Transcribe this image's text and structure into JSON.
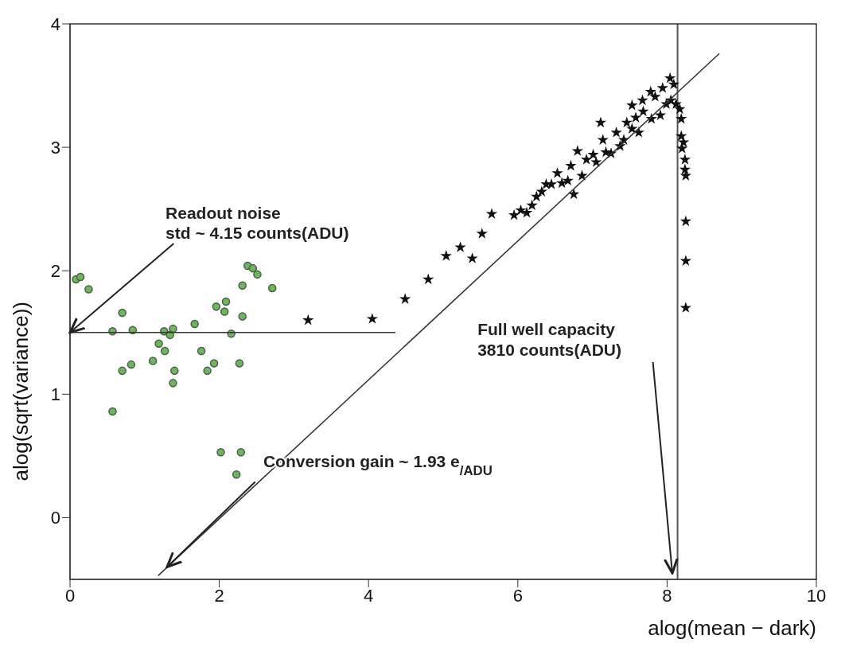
{
  "chart_data": {
    "type": "scatter",
    "xlabel": "alog(mean − dark)",
    "ylabel": "alog(sqrt(variance))",
    "xlim": [
      0,
      10
    ],
    "xticks": [
      0,
      2,
      4,
      6,
      8,
      10
    ],
    "ylim": [
      -0.5,
      4
    ],
    "yticks": [
      0,
      1,
      2,
      3,
      4
    ],
    "grid": false,
    "annotations": [
      {
        "text": "Readout noise",
        "x": 0,
        "y": 1.5
      },
      "std ~ 4.15 counts(ADU)",
      "Full well capacity",
      "3810 counts(ADU)",
      {
        "text": "Conversion gain ~ 1.93 e$_{/ADU}$",
        "x": 1.3,
        "y": -0.4
      }
    ],
    "ref_lines": [
      {
        "axis": "x",
        "value": 8.14,
        "color": "#555555"
      }
    ],
    "series": [
      {
        "marker": "circle",
        "color": "#66bb55",
        "x": [
          0.08,
          0.14,
          0.25,
          0.7,
          0.57,
          0.84,
          1.26,
          1.38,
          1.34,
          1.67,
          1.96,
          2.09,
          2.07,
          2.31,
          2.38,
          2.45,
          2.51,
          2.71,
          2.31,
          2.16,
          1.19,
          1.27,
          1.11,
          0.82,
          0.7,
          1.4,
          1.38,
          1.76,
          1.93,
          1.84,
          2.27,
          0.57,
          2.02,
          2.29,
          2.23
        ],
        "values": [
          1.93,
          1.95,
          1.85,
          1.66,
          1.51,
          1.52,
          1.51,
          1.53,
          1.48,
          1.57,
          1.71,
          1.75,
          1.67,
          1.88,
          2.04,
          2.02,
          1.97,
          1.86,
          1.63,
          1.49,
          1.41,
          1.35,
          1.27,
          1.24,
          1.19,
          1.19,
          1.09,
          1.35,
          1.25,
          1.19,
          1.25,
          0.86,
          0.53,
          0.53,
          0.35
        ]
      },
      {
        "marker": "star",
        "color": "#111111",
        "x": [
          3.19,
          4.05,
          4.49,
          4.8,
          5.04,
          5.23,
          5.39,
          5.52,
          5.65,
          5.95,
          6.04,
          6.12,
          6.19,
          6.25,
          6.32,
          6.38,
          6.45,
          6.53,
          6.59,
          6.67,
          6.75,
          6.71,
          6.86,
          6.8,
          6.92,
          7.05,
          7.01,
          7.11,
          7.14,
          7.18,
          7.25,
          7.32,
          7.37,
          7.42,
          7.46,
          7.53,
          7.62,
          7.58,
          7.53,
          7.67,
          7.68,
          7.78,
          7.79,
          7.84,
          7.91,
          7.94,
          7.99,
          8.04,
          8.09,
          8.05,
          8.12,
          8.17,
          8.19,
          8.19,
          8.22,
          8.2,
          8.24,
          8.24,
          8.25,
          8.25,
          8.25,
          8.25
        ],
        "values": [
          1.6,
          1.61,
          1.77,
          1.93,
          2.12,
          2.19,
          2.1,
          2.3,
          2.46,
          2.45,
          2.49,
          2.47,
          2.53,
          2.6,
          2.64,
          2.7,
          2.7,
          2.79,
          2.71,
          2.73,
          2.62,
          2.85,
          2.77,
          2.97,
          2.9,
          2.88,
          2.94,
          3.2,
          3.06,
          2.96,
          2.95,
          3.12,
          3.01,
          3.06,
          3.2,
          3.15,
          3.12,
          3.24,
          3.34,
          3.38,
          3.29,
          3.45,
          3.23,
          3.41,
          3.26,
          3.48,
          3.35,
          3.56,
          3.51,
          3.38,
          3.35,
          3.31,
          3.23,
          3.09,
          3.04,
          2.99,
          2.9,
          2.82,
          2.77,
          2.4,
          2.08,
          1.7
        ]
      },
      {
        "type": "line",
        "color": "#333333",
        "marker": "none",
        "x": [
          0,
          4.36
        ],
        "values": [
          1.5,
          1.5
        ]
      },
      {
        "type": "line",
        "color": "#333333",
        "marker": "none",
        "x": [
          1.18,
          8.7
        ],
        "values": [
          -0.47,
          3.76
        ]
      }
    ]
  }
}
